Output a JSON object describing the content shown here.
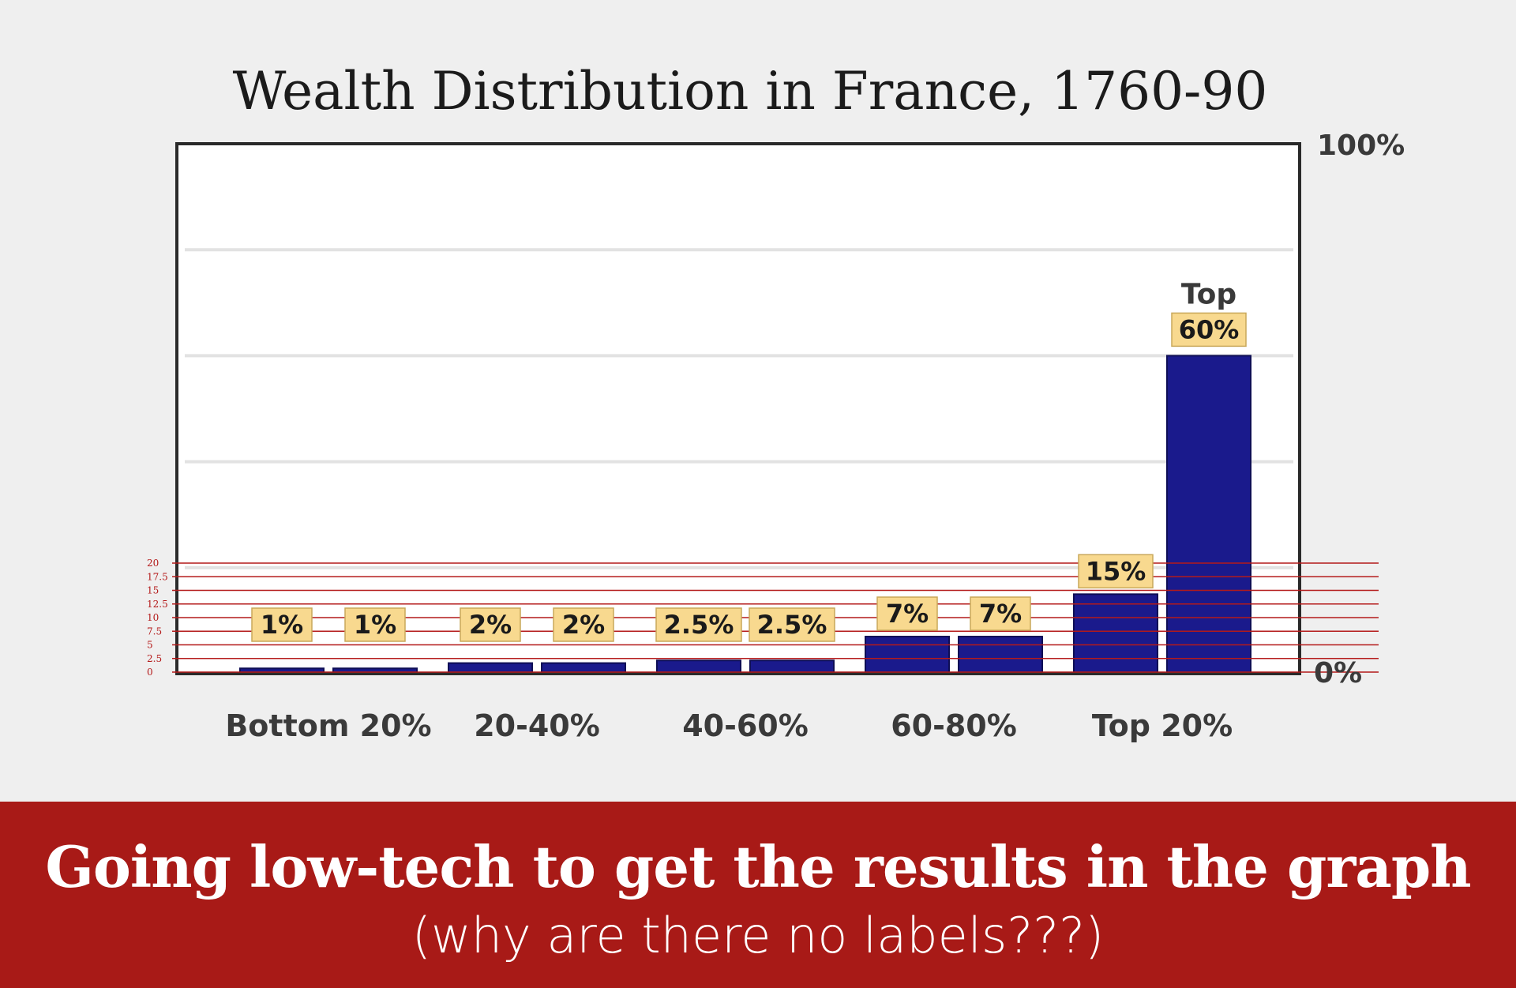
{
  "chart_data": {
    "type": "bar",
    "title": "Wealth Distribution in France, 1760-90",
    "categories": [
      "Bottom 20%",
      "20-40%",
      "40-60%",
      "60-80%",
      "Top 20%"
    ],
    "bars": [
      {
        "category": "Bottom 20%",
        "value": 1,
        "label": "1%"
      },
      {
        "category": "Bottom 20%",
        "value": 1,
        "label": "1%"
      },
      {
        "category": "20-40%",
        "value": 2,
        "label": "2%"
      },
      {
        "category": "20-40%",
        "value": 2,
        "label": "2%"
      },
      {
        "category": "40-60%",
        "value": 2.5,
        "label": "2.5%"
      },
      {
        "category": "40-60%",
        "value": 2.5,
        "label": "2.5%"
      },
      {
        "category": "60-80%",
        "value": 7,
        "label": "7%"
      },
      {
        "category": "60-80%",
        "value": 7,
        "label": "7%"
      },
      {
        "category": "Top 20%",
        "value": 15,
        "label": "15%"
      },
      {
        "category": "Top 20%",
        "value": 60,
        "label": "60%",
        "note": "Top"
      }
    ],
    "axis_max_label": "100%",
    "axis_min_label": "0%",
    "ylim": [
      0,
      100
    ],
    "reference_scale": {
      "ticks": [
        "20",
        "17.5",
        "15",
        "12.5",
        "10",
        "7.5",
        "5",
        "2.5",
        "0"
      ],
      "values": [
        20,
        17.5,
        15,
        12.5,
        10,
        7.5,
        5,
        2.5,
        0
      ],
      "color": "#b41a1a"
    },
    "bar_color": "#1a1a8c",
    "label_bg": "#f8d98f",
    "grid": true
  },
  "banner": {
    "headline": "Going low-tech to get the results in the graph",
    "subline": "(why are there no labels???)",
    "color": "#a81a17"
  }
}
